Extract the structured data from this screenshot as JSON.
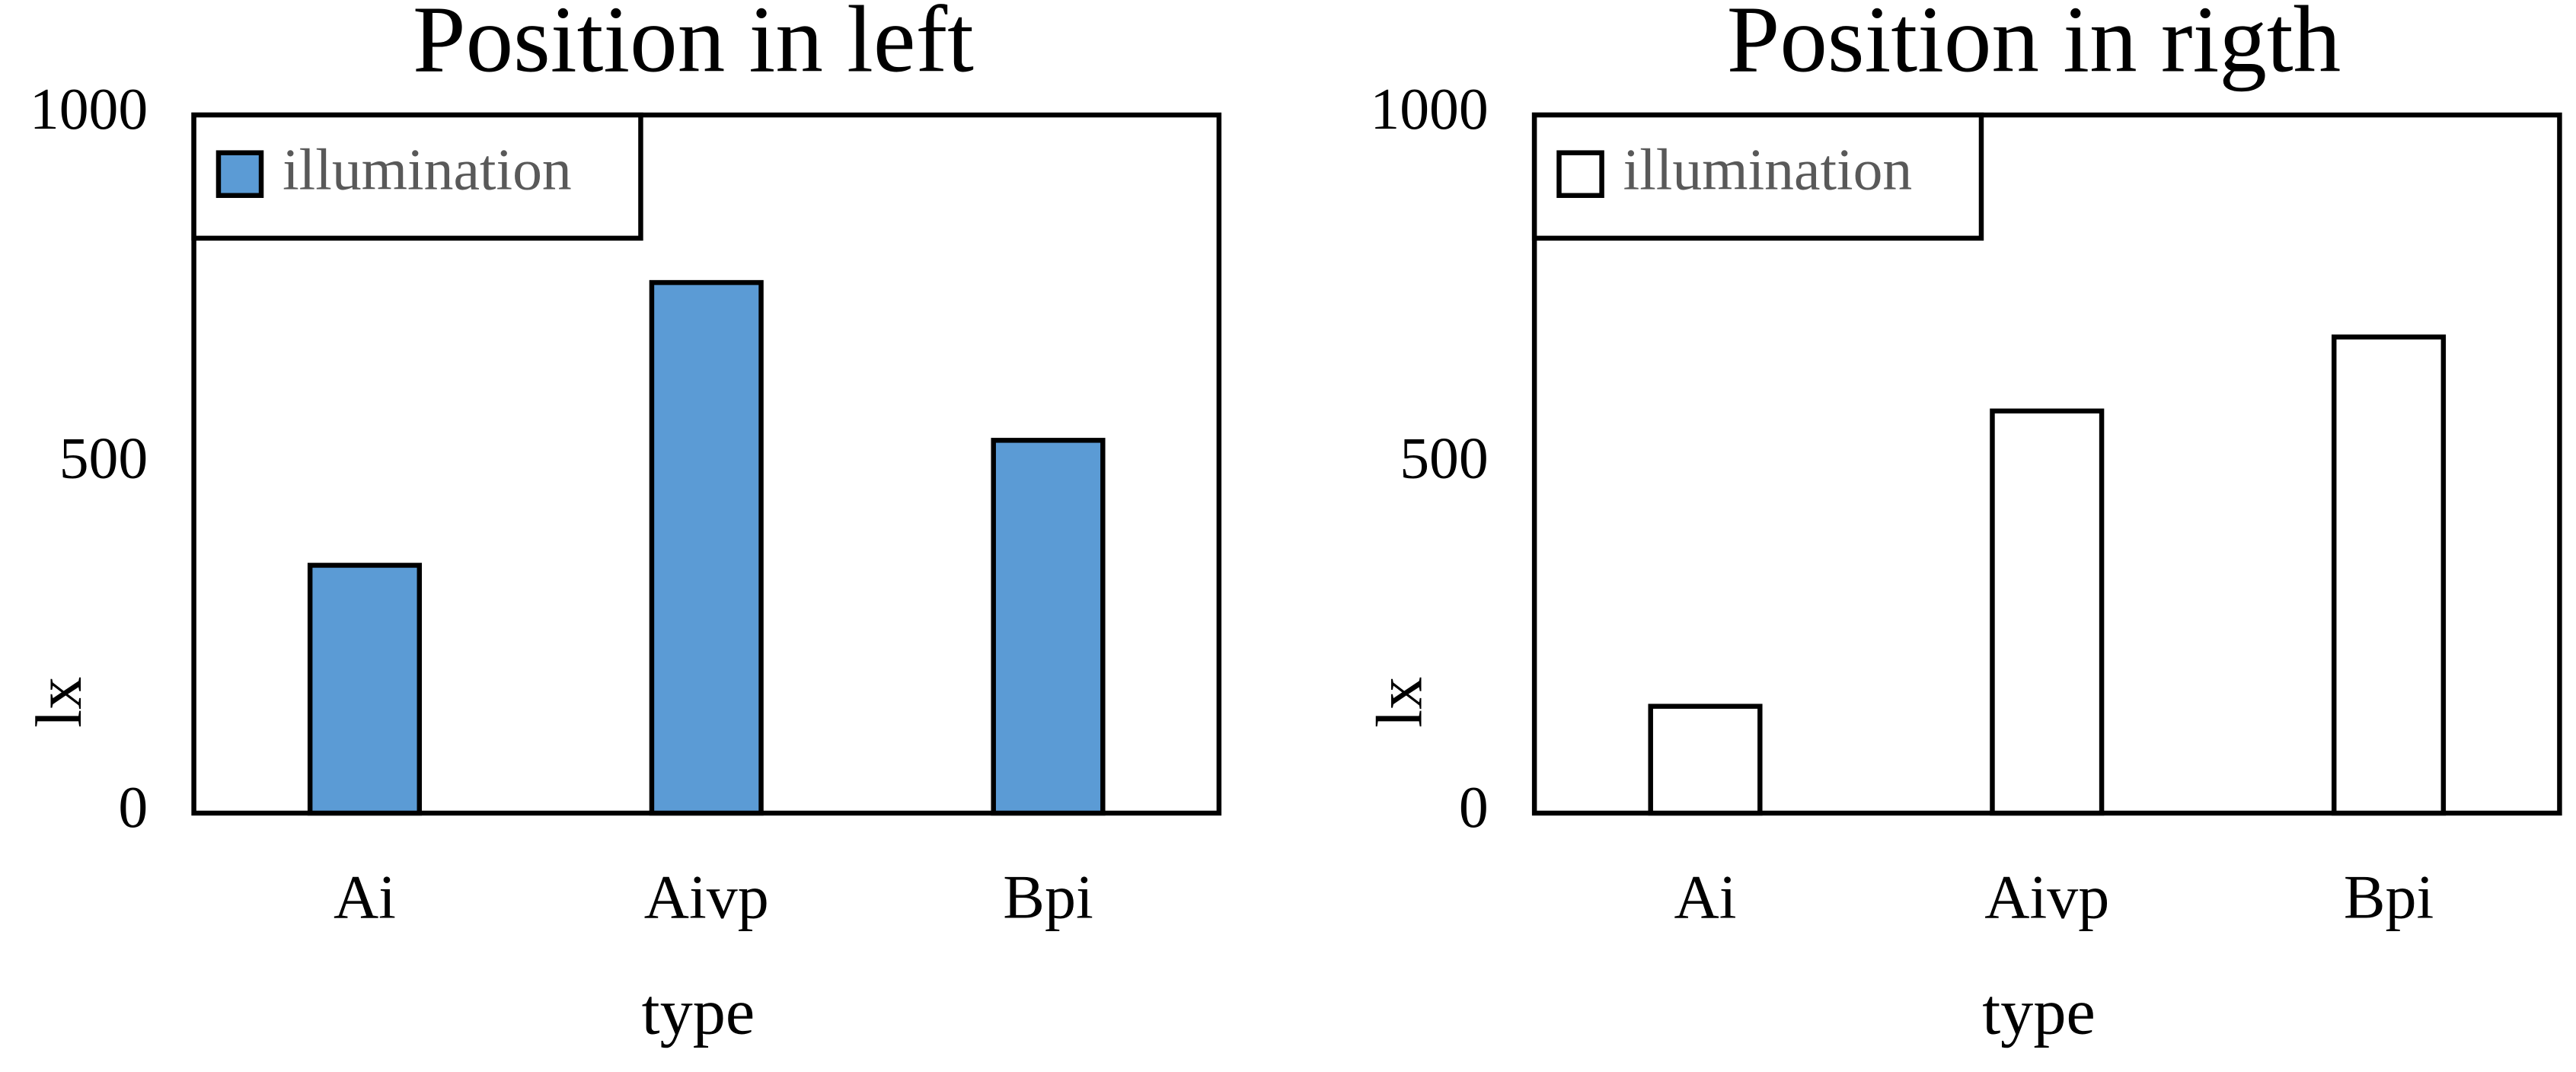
{
  "chart_data": [
    {
      "type": "bar",
      "title": "Position in left",
      "categories": [
        "Ai",
        "Aivp",
        "Bpi"
      ],
      "series": [
        {
          "name": "illumination",
          "color": "#5b9bd5",
          "values": [
            355,
            760,
            534
          ]
        }
      ],
      "ylim": [
        0,
        1000
      ],
      "yticks": [
        0,
        500,
        1000
      ],
      "xlabel": "type",
      "ylabel": "lx",
      "legend": "upper left"
    },
    {
      "type": "bar",
      "title": "Position in rigth",
      "categories": [
        "Ai",
        "Aivp",
        "Bpi"
      ],
      "series": [
        {
          "name": "illumination",
          "color": "#ffffff",
          "values": [
            153,
            576,
            682
          ]
        }
      ],
      "ylim": [
        0,
        1000
      ],
      "yticks": [
        0,
        500,
        1000
      ],
      "xlabel": "type",
      "ylabel": "lx",
      "legend": "upper left"
    }
  ]
}
